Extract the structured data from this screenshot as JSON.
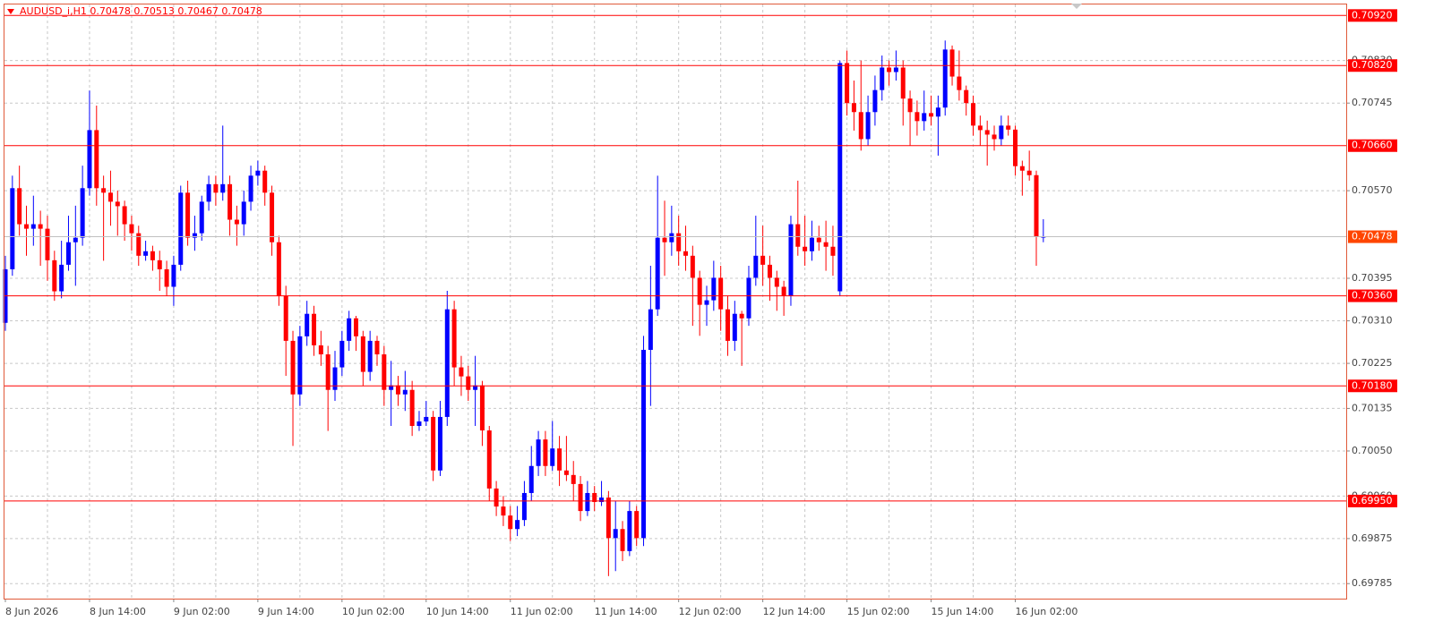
{
  "chart_data": {
    "type": "candlestick",
    "title": "AUDUSD_i,H1  0.70478 0.70513 0.70467 0.70478",
    "categories": [
      "8 Jun 2026",
      null,
      null,
      null,
      null,
      null,
      null,
      null,
      null,
      null,
      null,
      null,
      "8 Jun 14:00",
      null,
      null,
      null,
      null,
      null,
      null,
      null,
      null,
      null,
      null,
      null,
      "9 Jun 02:00",
      null,
      null,
      null,
      null,
      null,
      null,
      null,
      null,
      null,
      null,
      null,
      "9 Jun 14:00",
      null,
      null,
      null,
      null,
      null,
      null,
      null,
      null,
      null,
      null,
      null,
      "10 Jun 02:00",
      null,
      null,
      null,
      null,
      null,
      null,
      null,
      null,
      null,
      null,
      null,
      "10 Jun 14:00",
      null,
      null,
      null,
      null,
      null,
      null,
      null,
      null,
      null,
      null,
      null,
      "11 Jun 02:00",
      null,
      null,
      null,
      null,
      null,
      null,
      null,
      null,
      null,
      null,
      null,
      "11 Jun 14:00",
      null,
      null,
      null,
      null,
      null,
      null,
      null,
      null,
      null,
      null,
      null,
      "12 Jun 02:00",
      null,
      null,
      null,
      null,
      null,
      null,
      null,
      null,
      null,
      null,
      null,
      "12 Jun 14:00",
      null,
      null,
      null,
      null,
      null,
      null,
      null,
      null,
      null,
      null,
      null,
      "15 Jun 02:00",
      null,
      null,
      null,
      null,
      null,
      null,
      null,
      null,
      null,
      null,
      null,
      "15 Jun 14:00",
      null,
      null,
      null,
      null,
      null,
      null,
      null,
      null,
      null,
      null,
      null,
      "16 Jun 02:00",
      null,
      null,
      null,
      null
    ],
    "open": [
      0.70306,
      0.70413,
      0.70575,
      0.70503,
      0.70494,
      0.70503,
      0.70494,
      0.70431,
      0.70369,
      0.70422,
      0.70467,
      0.70476,
      0.70575,
      0.70691,
      0.70575,
      0.70566,
      0.70548,
      0.70539,
      0.70503,
      0.70485,
      0.7044,
      0.70449,
      0.70431,
      0.70413,
      0.70378,
      0.70422,
      0.70566,
      0.70476,
      0.70485,
      0.70548,
      0.70583,
      0.70566,
      0.70583,
      0.70512,
      0.70503,
      0.70548,
      0.706,
      0.7061,
      0.70566,
      0.70467,
      0.7036,
      0.7027,
      0.70163,
      0.70279,
      0.70324,
      0.70261,
      0.70243,
      0.70172,
      0.70217,
      0.7027,
      0.70315,
      0.70279,
      0.70208,
      0.7027,
      0.70243,
      0.70172,
      0.70181,
      0.70163,
      0.70172,
      0.701,
      0.70109,
      0.70118,
      0.70011,
      0.70118,
      0.70333,
      0.70217,
      0.70199,
      0.70172,
      0.70181,
      0.70091,
      0.69975,
      0.69939,
      0.69921,
      0.69894,
      0.69912,
      0.69966,
      0.7002,
      0.70073,
      0.7002,
      0.70055,
      0.70011,
      0.70002,
      0.69984,
      0.6993,
      0.69966,
      0.69948,
      0.69957,
      0.69876,
      0.69894,
      0.6985,
      0.6993,
      0.69876,
      0.70252,
      0.70333,
      0.70476,
      0.70467,
      0.70485,
      0.70449,
      0.7044,
      0.70396,
      0.70342,
      0.70351,
      0.70396,
      0.70333,
      0.7027,
      0.70324,
      0.70315,
      0.70396,
      0.7044,
      0.70422,
      0.70396,
      0.70378,
      0.7036,
      0.70503,
      0.70458,
      0.70449,
      0.70476,
      0.70467,
      0.70458,
      0.70369,
      0.70825,
      0.70745,
      0.70727,
      0.70673,
      0.70727,
      0.70771,
      0.70816,
      0.70807,
      0.70816,
      0.70754,
      0.70727,
      0.70709,
      0.70725,
      0.70718,
      0.70736,
      0.70852,
      0.70798,
      0.70771,
      0.70745,
      0.707,
      0.70691,
      0.70682,
      0.70673,
      0.707,
      0.70692,
      0.70619,
      0.7061,
      0.70601,
      0.70478
    ],
    "high": [
      0.7044,
      0.706,
      0.7062,
      0.7054,
      0.7056,
      0.7053,
      0.7052,
      0.7045,
      0.7047,
      0.7052,
      0.7054,
      0.7062,
      0.7077,
      0.7074,
      0.706,
      0.7061,
      0.7057,
      0.7055,
      0.7052,
      0.705,
      0.7047,
      0.7046,
      0.7045,
      0.7043,
      0.7044,
      0.7058,
      0.7059,
      0.7052,
      0.7056,
      0.706,
      0.706,
      0.707,
      0.706,
      0.7054,
      0.7057,
      0.7062,
      0.7063,
      0.7062,
      0.7058,
      0.7048,
      0.7038,
      0.7029,
      0.703,
      0.7035,
      0.7034,
      0.7029,
      0.7026,
      0.7025,
      0.7029,
      0.7033,
      0.7032,
      0.7029,
      0.7029,
      0.7028,
      0.7026,
      0.7023,
      0.702,
      0.7021,
      0.7019,
      0.7013,
      0.7015,
      0.7013,
      0.7015,
      0.7037,
      0.7035,
      0.7024,
      0.7022,
      0.7024,
      0.7019,
      0.701,
      0.6999,
      0.6996,
      0.6994,
      0.6994,
      0.6999,
      0.7006,
      0.7009,
      0.7009,
      0.7011,
      0.7008,
      0.7008,
      0.7003,
      0.7,
      0.6999,
      0.6998,
      0.6999,
      0.6997,
      0.6995,
      0.6991,
      0.6995,
      0.6994,
      0.7028,
      0.7042,
      0.706,
      0.7055,
      0.7054,
      0.7052,
      0.705,
      0.7046,
      0.7041,
      0.7038,
      0.7043,
      0.7042,
      0.7036,
      0.7035,
      0.7033,
      0.7042,
      0.7052,
      0.705,
      0.7044,
      0.7041,
      0.7039,
      0.7052,
      0.7059,
      0.7052,
      0.7051,
      0.705,
      0.7051,
      0.705,
      0.7083,
      0.7085,
      0.7079,
      0.7083,
      0.7076,
      0.708,
      0.7084,
      0.7083,
      0.7085,
      0.7083,
      0.7077,
      0.7075,
      0.7077,
      0.7076,
      0.7076,
      0.7087,
      0.7086,
      0.7085,
      0.7078,
      0.7076,
      0.7072,
      0.7071,
      0.707,
      0.7072,
      0.7072,
      0.707,
      0.7063,
      0.7065,
      0.7061,
      0.70513
    ],
    "low": [
      0.7029,
      0.704,
      0.7048,
      0.7044,
      0.7046,
      0.7042,
      0.7039,
      0.7035,
      0.70355,
      0.7041,
      0.7038,
      0.7046,
      0.7056,
      0.7054,
      0.7043,
      0.705,
      0.7048,
      0.7047,
      0.7045,
      0.7042,
      0.7043,
      0.7041,
      0.7037,
      0.7036,
      0.7034,
      0.7041,
      0.7046,
      0.7045,
      0.7047,
      0.7053,
      0.7054,
      0.7055,
      0.7048,
      0.7046,
      0.7048,
      0.7053,
      0.7058,
      0.7054,
      0.7044,
      0.7034,
      0.702,
      0.7006,
      0.7014,
      0.7026,
      0.7024,
      0.7022,
      0.7009,
      0.7015,
      0.702,
      0.7025,
      0.7025,
      0.7018,
      0.7019,
      0.7022,
      0.7014,
      0.701,
      0.7014,
      0.7013,
      0.7008,
      0.7009,
      0.701,
      0.6999,
      0.7,
      0.701,
      0.7018,
      0.7016,
      0.7015,
      0.701,
      0.7006,
      0.6995,
      0.6992,
      0.699,
      0.6987,
      0.6988,
      0.699,
      0.6995,
      0.7,
      0.7,
      0.7001,
      0.6998,
      0.6999,
      0.6995,
      0.6991,
      0.6992,
      0.6993,
      0.6994,
      0.698,
      0.6981,
      0.6983,
      0.6984,
      0.6986,
      0.6986,
      0.7014,
      0.7032,
      0.704,
      0.7044,
      0.7042,
      0.7041,
      0.703,
      0.7028,
      0.703,
      0.7033,
      0.7029,
      0.7024,
      0.7025,
      0.7022,
      0.703,
      0.7038,
      0.7038,
      0.7035,
      0.7033,
      0.7032,
      0.7034,
      0.7044,
      0.7042,
      0.7043,
      0.7045,
      0.7041,
      0.704,
      0.7036,
      0.7072,
      0.7069,
      0.7065,
      0.7066,
      0.707,
      0.7075,
      0.7078,
      0.7079,
      0.707,
      0.7066,
      0.7068,
      0.7069,
      0.707,
      0.7064,
      0.7072,
      0.7078,
      0.7075,
      0.7072,
      0.7068,
      0.7066,
      0.7062,
      0.7065,
      0.7066,
      0.7068,
      0.706,
      0.7056,
      0.7059,
      0.7042,
      0.70467
    ],
    "close": [
      0.70413,
      0.70575,
      0.70503,
      0.70494,
      0.70503,
      0.70494,
      0.70431,
      0.70369,
      0.70422,
      0.70467,
      0.70476,
      0.70575,
      0.70691,
      0.70575,
      0.70566,
      0.70548,
      0.70539,
      0.70503,
      0.70485,
      0.7044,
      0.70449,
      0.70431,
      0.70413,
      0.70378,
      0.70422,
      0.70566,
      0.70476,
      0.70485,
      0.70548,
      0.70583,
      0.70566,
      0.70583,
      0.70512,
      0.70503,
      0.70548,
      0.706,
      0.7061,
      0.70566,
      0.70467,
      0.7036,
      0.7027,
      0.70163,
      0.70279,
      0.70324,
      0.70261,
      0.70243,
      0.70172,
      0.70217,
      0.7027,
      0.70315,
      0.70279,
      0.70208,
      0.7027,
      0.70243,
      0.70172,
      0.70181,
      0.70163,
      0.70172,
      0.701,
      0.70109,
      0.70118,
      0.70011,
      0.70118,
      0.70333,
      0.70217,
      0.70199,
      0.70172,
      0.70181,
      0.70091,
      0.69975,
      0.69939,
      0.69921,
      0.69894,
      0.69912,
      0.69966,
      0.7002,
      0.70073,
      0.7002,
      0.70055,
      0.70011,
      0.70002,
      0.69984,
      0.6993,
      0.69966,
      0.69948,
      0.69957,
      0.69876,
      0.69894,
      0.6985,
      0.6993,
      0.69876,
      0.70252,
      0.70333,
      0.70476,
      0.70467,
      0.70485,
      0.70449,
      0.7044,
      0.70396,
      0.70342,
      0.70351,
      0.70396,
      0.70333,
      0.7027,
      0.70324,
      0.70315,
      0.70396,
      0.7044,
      0.70422,
      0.70396,
      0.70378,
      0.7036,
      0.70503,
      0.70458,
      0.70449,
      0.70476,
      0.70467,
      0.70458,
      0.7044,
      0.70825,
      0.70745,
      0.70727,
      0.70673,
      0.70727,
      0.70771,
      0.70816,
      0.70807,
      0.70816,
      0.70754,
      0.70727,
      0.70709,
      0.70725,
      0.70718,
      0.70736,
      0.70852,
      0.70798,
      0.70771,
      0.70745,
      0.707,
      0.70691,
      0.70682,
      0.70673,
      0.707,
      0.70692,
      0.70619,
      0.7061,
      0.70601,
      0.70478,
      0.70478
    ],
    "colors": {
      "up": "#0000ff",
      "down": "#ff0000",
      "level": "#ff0000",
      "last": "#ff4500"
    },
    "ylim": [
      0.69755,
      0.70942
    ],
    "yticks": [
      {
        "value": 0.7083,
        "label": "0.70830"
      },
      0.70745,
      {
        "value": 0.7057,
        "label": "0.70570"
      },
      0.70395,
      {
        "value": 0.7031,
        "label": "0.70310"
      },
      0.70225,
      0.70135,
      {
        "value": 0.7005,
        "label": "0.70050"
      },
      {
        "value": 0.6996,
        "label": "0.69960"
      },
      0.69875,
      0.69785
    ],
    "levels": [
      {
        "value": 0.7092,
        "label": "0.70920"
      },
      {
        "value": 0.7082,
        "label": "0.70820"
      },
      {
        "value": 0.7066,
        "label": "0.70660"
      },
      {
        "value": 0.7036,
        "label": "0.70360"
      },
      {
        "value": 0.7018,
        "label": "0.70180"
      },
      {
        "value": 0.6995,
        "label": "0.69950"
      }
    ],
    "last_price": 0.70478,
    "grid": true
  }
}
